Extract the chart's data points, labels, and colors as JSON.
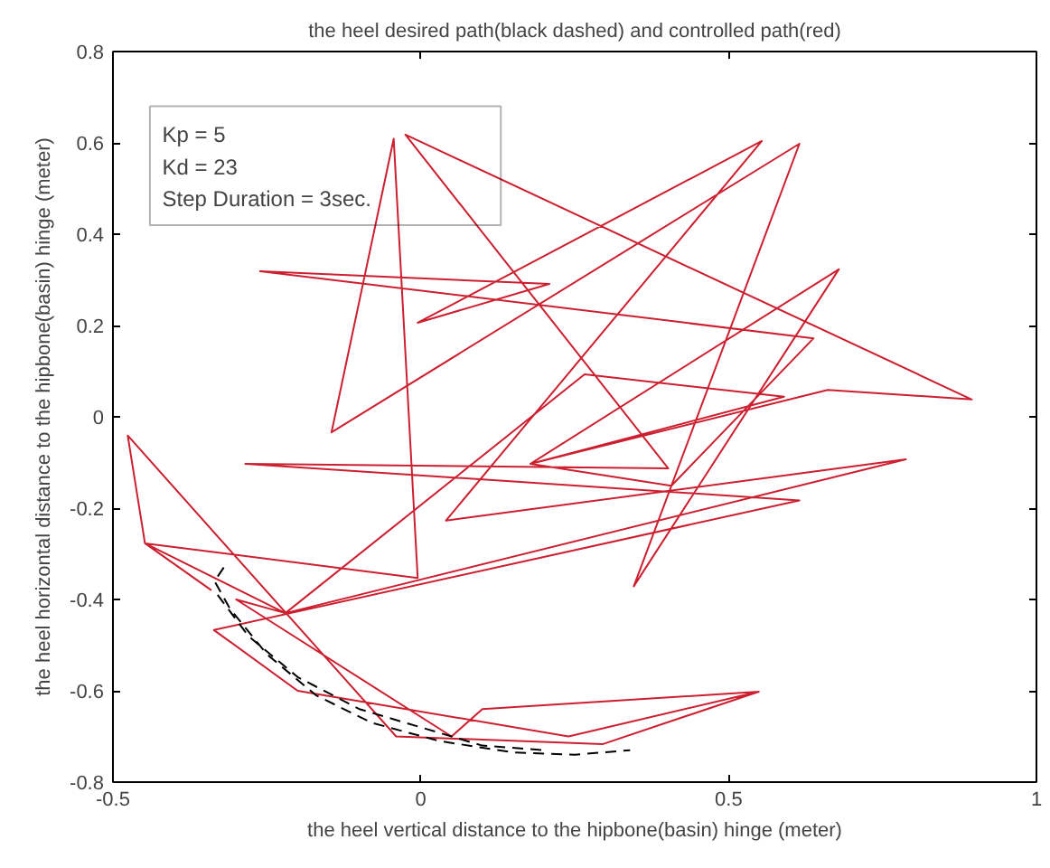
{
  "chart_data": {
    "type": "line",
    "title": "the heel desired path(black dashed) and controlled path(red)",
    "xlabel": "the heel vertical distance to the hipbone(basin) hinge (meter)",
    "ylabel": "the heel horizontal distance to the hipbone(basin) hinge (meter)",
    "annotations": [
      "Kp = 5",
      "Kd = 23",
      "Step Duration = 3sec."
    ],
    "xlim": [
      -0.5,
      1
    ],
    "ylim": [
      -0.8,
      0.8
    ],
    "xticks": [
      -0.5,
      0,
      0.5,
      1
    ],
    "yticks": [
      -0.8,
      -0.6,
      -0.4,
      -0.2,
      0,
      0.2,
      0.4,
      0.6,
      0.8
    ],
    "grid": false,
    "marker": "none",
    "series": [
      {
        "color": "#cc2030",
        "line_style": "solid",
        "x": [
          -0.34,
          -0.448,
          -0.476,
          -0.04,
          0.295,
          0.549,
          0.24,
          -0.2,
          -0.336,
          0.615,
          -0.285,
          0.402,
          -0.025,
          0.895,
          0.661,
          0.178,
          0.679,
          0.346,
          0.615,
          -0.145,
          -0.044,
          -0.005,
          -0.448,
          -0.22,
          0.266,
          0.59,
          0.178,
          0.407,
          0.638,
          -0.261,
          0.209,
          -0.005,
          0.554,
          0.041,
          0.788,
          -0.22,
          -0.3,
          0.05,
          0.1,
          0.549
        ],
        "values": [
          -0.38,
          -0.277,
          -0.041,
          -0.7,
          -0.717,
          -0.602,
          -0.7,
          -0.6,
          -0.467,
          -0.183,
          -0.103,
          -0.113,
          0.618,
          0.038,
          0.059,
          -0.103,
          0.323,
          -0.371,
          0.598,
          -0.034,
          0.609,
          -0.353,
          -0.277,
          -0.43,
          0.093,
          0.044,
          -0.103,
          -0.151,
          0.172,
          0.319,
          0.291,
          0.206,
          0.604,
          -0.227,
          -0.093,
          -0.43,
          -0.4,
          -0.7,
          -0.64,
          -0.602
        ]
      },
      {
        "color": "#000000",
        "line_style": "dashed",
        "x": [
          -0.32,
          -0.335,
          -0.31,
          -0.25,
          -0.17,
          -0.08,
          0.03,
          0.15,
          0.25,
          0.34,
          null,
          -0.33,
          -0.28,
          -0.2,
          -0.1,
          0.0,
          0.1,
          0.2
        ],
        "values": [
          -0.33,
          -0.36,
          -0.42,
          -0.52,
          -0.61,
          -0.67,
          -0.71,
          -0.735,
          -0.74,
          -0.73,
          null,
          -0.39,
          -0.48,
          -0.57,
          -0.64,
          -0.68,
          -0.72,
          -0.73
        ]
      }
    ]
  }
}
